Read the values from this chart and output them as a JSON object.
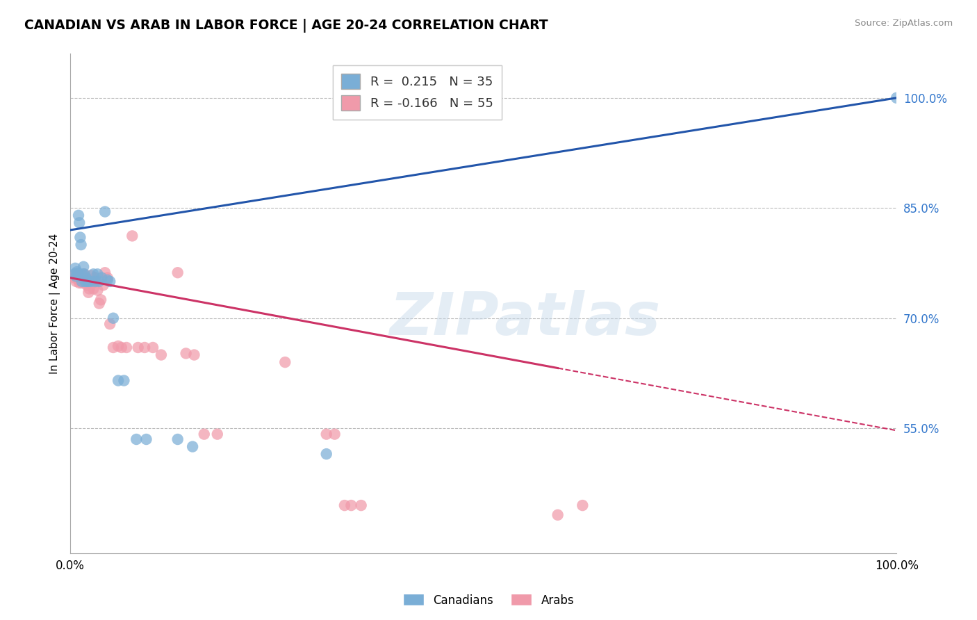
{
  "title": "CANADIAN VS ARAB IN LABOR FORCE | AGE 20-24 CORRELATION CHART",
  "source": "Source: ZipAtlas.com",
  "ylabel": "In Labor Force | Age 20-24",
  "xlim": [
    0.0,
    1.0
  ],
  "ylim": [
    0.38,
    1.06
  ],
  "yticks": [
    0.55,
    0.7,
    0.85,
    1.0
  ],
  "ytick_labels": [
    "55.0%",
    "70.0%",
    "85.0%",
    "100.0%"
  ],
  "xtick_positions": [
    0.0,
    0.2,
    0.4,
    0.6,
    0.8,
    1.0
  ],
  "xtick_labels": [
    "0.0%",
    "",
    "",
    "",
    "",
    "100.0%"
  ],
  "canadian_R": "0.215",
  "canadian_N": "35",
  "arab_R": "-0.166",
  "arab_N": "55",
  "canadian_color": "#7aaed6",
  "arab_color": "#f09aaa",
  "trendline_canadian_color": "#2255aa",
  "trendline_arab_color": "#cc3366",
  "watermark_text": "ZIPatlas",
  "background_color": "#ffffff",
  "canadian_trendline": [
    [
      0.0,
      0.82
    ],
    [
      1.0,
      1.0
    ]
  ],
  "arab_trendline_solid": [
    [
      0.0,
      0.755
    ],
    [
      0.59,
      0.632
    ]
  ],
  "arab_trendline_dash": [
    [
      0.59,
      0.632
    ],
    [
      1.0,
      0.547
    ]
  ],
  "canadians_x": [
    0.005,
    0.006,
    0.007,
    0.008,
    0.009,
    0.01,
    0.011,
    0.012,
    0.013,
    0.014,
    0.015,
    0.016,
    0.017,
    0.018,
    0.019,
    0.02,
    0.022,
    0.025,
    0.028,
    0.03,
    0.033,
    0.035,
    0.038,
    0.042,
    0.045,
    0.048,
    0.052,
    0.058,
    0.065,
    0.08,
    0.092,
    0.13,
    0.148,
    0.31,
    1.0
  ],
  "canadians_y": [
    0.76,
    0.768,
    0.757,
    0.763,
    0.761,
    0.84,
    0.83,
    0.81,
    0.8,
    0.75,
    0.76,
    0.77,
    0.76,
    0.75,
    0.755,
    0.75,
    0.75,
    0.75,
    0.76,
    0.75,
    0.76,
    0.75,
    0.755,
    0.845,
    0.752,
    0.75,
    0.7,
    0.615,
    0.615,
    0.535,
    0.535,
    0.535,
    0.525,
    0.515,
    1.0
  ],
  "arabs_x": [
    0.005,
    0.006,
    0.007,
    0.008,
    0.009,
    0.01,
    0.011,
    0.012,
    0.013,
    0.014,
    0.015,
    0.016,
    0.017,
    0.018,
    0.019,
    0.02,
    0.021,
    0.022,
    0.023,
    0.024,
    0.025,
    0.026,
    0.027,
    0.028,
    0.03,
    0.032,
    0.033,
    0.035,
    0.037,
    0.04,
    0.042,
    0.045,
    0.048,
    0.052,
    0.058,
    0.062,
    0.068,
    0.075,
    0.082,
    0.09,
    0.1,
    0.11,
    0.13,
    0.14,
    0.15,
    0.162,
    0.178,
    0.26,
    0.31,
    0.32,
    0.332,
    0.34,
    0.352,
    0.59,
    0.62
  ],
  "arabs_y": [
    0.755,
    0.76,
    0.75,
    0.758,
    0.755,
    0.752,
    0.748,
    0.755,
    0.752,
    0.748,
    0.758,
    0.752,
    0.76,
    0.755,
    0.748,
    0.745,
    0.75,
    0.735,
    0.74,
    0.75,
    0.758,
    0.752,
    0.748,
    0.74,
    0.755,
    0.75,
    0.738,
    0.72,
    0.725,
    0.745,
    0.762,
    0.755,
    0.692,
    0.66,
    0.662,
    0.66,
    0.66,
    0.812,
    0.66,
    0.66,
    0.66,
    0.65,
    0.762,
    0.652,
    0.65,
    0.542,
    0.542,
    0.64,
    0.542,
    0.542,
    0.445,
    0.445,
    0.445,
    0.432,
    0.445
  ]
}
